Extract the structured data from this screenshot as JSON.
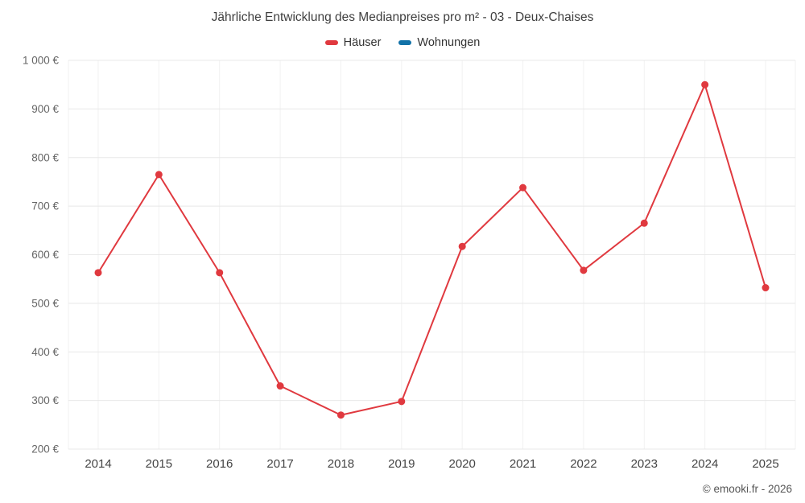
{
  "title": "Jährliche Entwicklung des Medianpreises pro m² - 03 - Deux-Chaises",
  "footer": "© emooki.fr - 2026",
  "legend": [
    {
      "label": "Häuser",
      "color": "#e0393f"
    },
    {
      "label": "Wohnungen",
      "color": "#1272a8"
    }
  ],
  "chart_data": {
    "type": "line",
    "title": "Jährliche Entwicklung des Medianpreises pro m² - 03 - Deux-Chaises",
    "x": [
      2014,
      2015,
      2016,
      2017,
      2018,
      2019,
      2020,
      2021,
      2022,
      2023,
      2024,
      2025
    ],
    "series": [
      {
        "name": "Häuser",
        "color": "#e0393f",
        "values": [
          563,
          765,
          563,
          330,
          270,
          298,
          617,
          738,
          568,
          665,
          950,
          532
        ]
      },
      {
        "name": "Wohnungen",
        "color": "#1272a8",
        "values": []
      }
    ],
    "ylim": [
      200,
      1000
    ],
    "ytick_step": 100,
    "ytick_suffix": " €",
    "xlabel": "",
    "ylabel": "",
    "grid": true,
    "legend_position": "top",
    "colors": {
      "grid_horizontal": "#e8e8e8",
      "grid_vertical": "#f1f1f1",
      "ytick_text": "#666666",
      "xtick_text": "#444444"
    }
  }
}
